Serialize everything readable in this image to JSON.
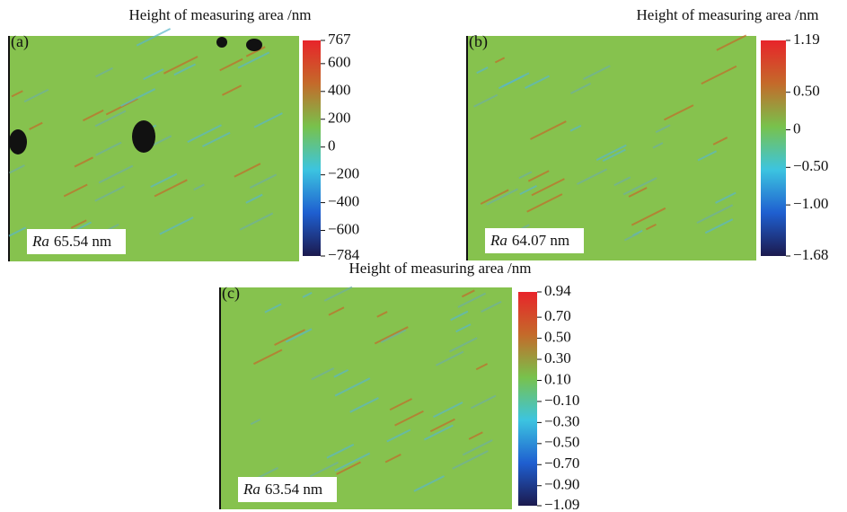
{
  "chart_data": [
    {
      "type": "heatmap",
      "panel_label": "(a)",
      "title": "Height of measuring area /nm",
      "annotation": {
        "symbol": "Ra",
        "text": "65.54 nm"
      },
      "colormap": [
        "#1c1a4e",
        "#1f5fd0",
        "#3cc4e0",
        "#78c24c",
        "#c46a2a",
        "#e8242a"
      ],
      "ylim": [
        -784,
        767
      ],
      "yticks": [
        {
          "value": -784,
          "label": "−784"
        },
        {
          "value": -600,
          "label": "−600"
        },
        {
          "value": -400,
          "label": "−400"
        },
        {
          "value": -200,
          "label": "−200"
        },
        0,
        200,
        400,
        600,
        767
      ]
    },
    {
      "type": "heatmap",
      "panel_label": "(b)",
      "title": "Height of measuring area /nm",
      "annotation": {
        "symbol": "Ra",
        "text": "64.07 nm"
      },
      "colormap": [
        "#1c1a4e",
        "#1f5fd0",
        "#3cc4e0",
        "#78c24c",
        "#c46a2a",
        "#e8242a"
      ],
      "ylim": [
        -1.68,
        1.19
      ],
      "yticks": [
        {
          "value": -1.68,
          "label": "−1.68"
        },
        {
          "value": -1,
          "label": "−1.00"
        },
        {
          "value": -0.5,
          "label": "−0.50"
        },
        0,
        {
          "value": 0.5,
          "label": "0.50"
        },
        1.19
      ]
    },
    {
      "type": "heatmap",
      "panel_label": "(c)",
      "title": "Height of measuring area /nm",
      "annotation": {
        "symbol": "Ra",
        "text": "63.54 nm"
      },
      "colormap": [
        "#1c1a4e",
        "#1f5fd0",
        "#3cc4e0",
        "#78c24c",
        "#c46a2a",
        "#e8242a"
      ],
      "ylim": [
        -1.09,
        0.94
      ],
      "yticks": [
        {
          "value": -1.09,
          "label": "−1.09"
        },
        {
          "value": -0.9,
          "label": "−0.90"
        },
        {
          "value": -0.7,
          "label": "−0.70"
        },
        {
          "value": -0.5,
          "label": "−0.50"
        },
        {
          "value": -0.3,
          "label": "−0.30"
        },
        {
          "value": -0.1,
          "label": "−0.10"
        },
        {
          "value": 0.1,
          "label": "0.10"
        },
        {
          "value": 0.3,
          "label": "0.30"
        },
        {
          "value": 0.5,
          "label": "0.50"
        },
        {
          "value": 0.7,
          "label": "0.70"
        },
        0.94
      ]
    }
  ]
}
